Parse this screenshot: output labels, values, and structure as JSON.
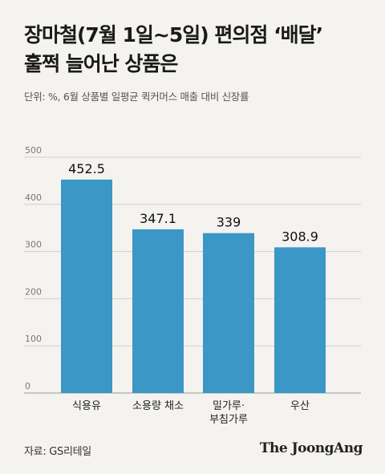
{
  "title_line1": "장마철(7월 1일~5일) 편의점 ‘배달’",
  "title_line2": "훌쩍 늘어난 상품은",
  "unit_note": "단위: %, 6월 상품별 일평균 퀵커머스 매출 대비 신장률",
  "source": "자료: GS리테일",
  "logo": "The JoongAng",
  "colors": {
    "bar": "#3a97c6",
    "grid": "#cfcfcf",
    "background": "#f4f3ef"
  },
  "chart_data": {
    "type": "bar",
    "categories": [
      "식용유",
      "소용량 채소",
      "밀가루·\n부침가루",
      "우산"
    ],
    "values": [
      452.5,
      347.1,
      339,
      308.9
    ],
    "data_labels": [
      "452.5",
      "347.1",
      "339",
      "308.9"
    ],
    "ylim": [
      0,
      500
    ],
    "yticks": [
      0,
      100,
      200,
      300,
      400,
      500
    ],
    "grid": true
  }
}
